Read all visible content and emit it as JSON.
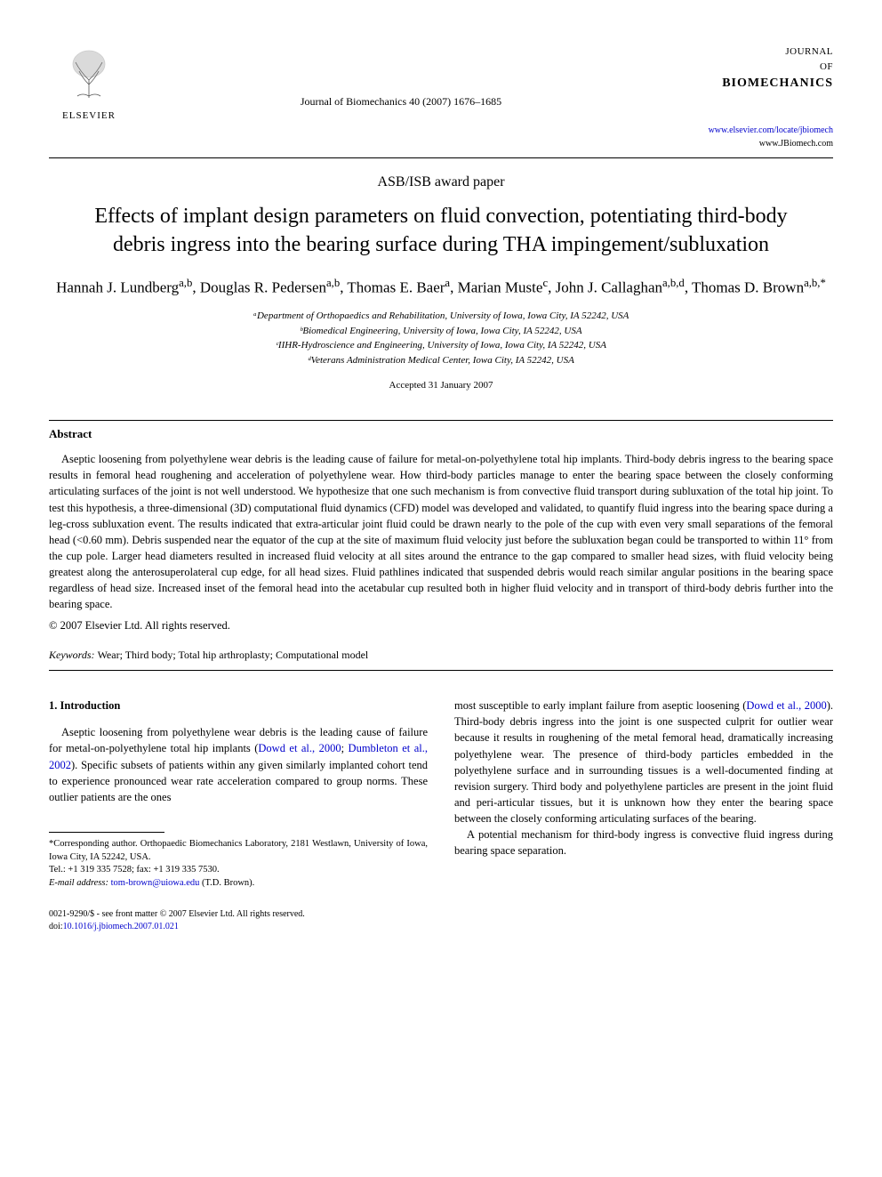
{
  "header": {
    "publisher": "ELSEVIER",
    "citation": "Journal of Biomechanics 40 (2007) 1676–1685",
    "journal_line1": "JOURNAL",
    "journal_line2": "OF",
    "journal_line3": "BIOMECHANICS",
    "link1": "www.elsevier.com/locate/jbiomech",
    "link2": "www.JBiomech.com"
  },
  "paper_type": "ASB/ISB award paper",
  "title": "Effects of implant design parameters on fluid convection, potentiating third-body debris ingress into the bearing surface during THA impingement/subluxation",
  "authors_html": "Hannah J. Lundberg<sup>a,b</sup>, Douglas R. Pedersen<sup>a,b</sup>, Thomas E. Baer<sup>a</sup>, Marian Muste<sup>c</sup>, John J. Callaghan<sup>a,b,d</sup>, Thomas D. Brown<sup>a,b,*</sup>",
  "affiliations": [
    "ᵃDepartment of Orthopaedics and Rehabilitation, University of Iowa, Iowa City, IA 52242, USA",
    "ᵇBiomedical Engineering, University of Iowa, Iowa City, IA 52242, USA",
    "ᶜIIHR-Hydroscience and Engineering, University of Iowa, Iowa City, IA 52242, USA",
    "ᵈVeterans Administration Medical Center, Iowa City, IA 52242, USA"
  ],
  "accepted": "Accepted 31 January 2007",
  "abstract": {
    "heading": "Abstract",
    "text": "Aseptic loosening from polyethylene wear debris is the leading cause of failure for metal-on-polyethylene total hip implants. Third-body debris ingress to the bearing space results in femoral head roughening and acceleration of polyethylene wear. How third-body particles manage to enter the bearing space between the closely conforming articulating surfaces of the joint is not well understood. We hypothesize that one such mechanism is from convective fluid transport during subluxation of the total hip joint. To test this hypothesis, a three-dimensional (3D) computational fluid dynamics (CFD) model was developed and validated, to quantify fluid ingress into the bearing space during a leg-cross subluxation event. The results indicated that extra-articular joint fluid could be drawn nearly to the pole of the cup with even very small separations of the femoral head (<0.60 mm). Debris suspended near the equator of the cup at the site of maximum fluid velocity just before the subluxation began could be transported to within 11° from the cup pole. Larger head diameters resulted in increased fluid velocity at all sites around the entrance to the gap compared to smaller head sizes, with fluid velocity being greatest along the anterosuperolateral cup edge, for all head sizes. Fluid pathlines indicated that suspended debris would reach similar angular positions in the bearing space regardless of head size. Increased inset of the femoral head into the acetabular cup resulted both in higher fluid velocity and in transport of third-body debris further into the bearing space.",
    "copyright": "© 2007 Elsevier Ltd. All rights reserved."
  },
  "keywords_label": "Keywords:",
  "keywords_value": "Wear; Third body; Total hip arthroplasty; Computational model",
  "intro": {
    "heading": "1. Introduction",
    "para1_pre": "Aseptic loosening from polyethylene wear debris is the leading cause of failure for metal-on-polyethylene total hip implants (",
    "cite1": "Dowd et al., 2000",
    "para1_mid": "; ",
    "cite2": "Dumbleton et al., 2002",
    "para1_post": "). Specific subsets of patients within any given similarly implanted cohort tend to experience pronounced wear rate acceleration compared to group norms. These outlier patients are the ones",
    "para2_pre": "most susceptible to early implant failure from aseptic loosening (",
    "cite3": "Dowd et al., 2000",
    "para2_post": "). Third-body debris ingress into the joint is one suspected culprit for outlier wear because it results in roughening of the metal femoral head, dramatically increasing polyethylene wear. The presence of third-body particles embedded in the polyethylene surface and in surrounding tissues is a well-documented finding at revision surgery. Third body and polyethylene particles are present in the joint fluid and peri-articular tissues, but it is unknown how they enter the bearing space between the closely conforming articulating surfaces of the bearing.",
    "para3": "A potential mechanism for third-body ingress is convective fluid ingress during bearing space separation."
  },
  "footnote": {
    "corr": "*Corresponding author. Orthopaedic Biomechanics Laboratory, 2181 Westlawn, University of Iowa, Iowa City, IA 52242, USA.",
    "tel": "Tel.: +1 319 335 7528; fax: +1 319 335 7530.",
    "email_label": "E-mail address:",
    "email": "tom-brown@uiowa.edu",
    "email_name": "(T.D. Brown)."
  },
  "bottom": {
    "issn_line": "0021-9290/$ - see front matter © 2007 Elsevier Ltd. All rights reserved.",
    "doi_prefix": "doi:",
    "doi": "10.1016/j.jbiomech.2007.01.021"
  },
  "colors": {
    "link": "#0000cc",
    "text": "#000000",
    "background": "#ffffff"
  }
}
